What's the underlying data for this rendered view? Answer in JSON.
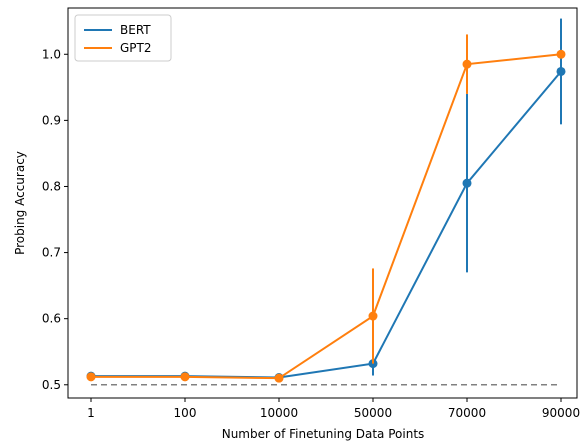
{
  "chart_data": {
    "type": "line",
    "xlabel": "Number of Finetuning Data Points",
    "ylabel": "Probing Accuracy",
    "categories": [
      "1",
      "100",
      "10000",
      "50000",
      "70000",
      "90000"
    ],
    "ylim": [
      0.48,
      1.07
    ],
    "yticks": [
      "0.5",
      "0.6",
      "0.7",
      "0.8",
      "0.9",
      "1.0"
    ],
    "legend_position": "top-left",
    "grid": false,
    "baseline": {
      "value": 0.5,
      "style": "dashed",
      "color": "#808080"
    },
    "series": [
      {
        "name": "BERT",
        "color": "#1f77b4",
        "values": [
          0.513,
          0.513,
          0.511,
          0.532,
          0.805,
          0.974
        ],
        "errors": [
          0.0,
          0.0,
          0.0,
          0.018,
          0.135,
          0.08
        ]
      },
      {
        "name": "GPT2",
        "color": "#ff7f0e",
        "values": [
          0.512,
          0.512,
          0.51,
          0.604,
          0.985,
          1.0
        ],
        "errors": [
          0.0,
          0.0,
          0.0,
          0.072,
          0.045,
          0.0
        ]
      }
    ]
  }
}
